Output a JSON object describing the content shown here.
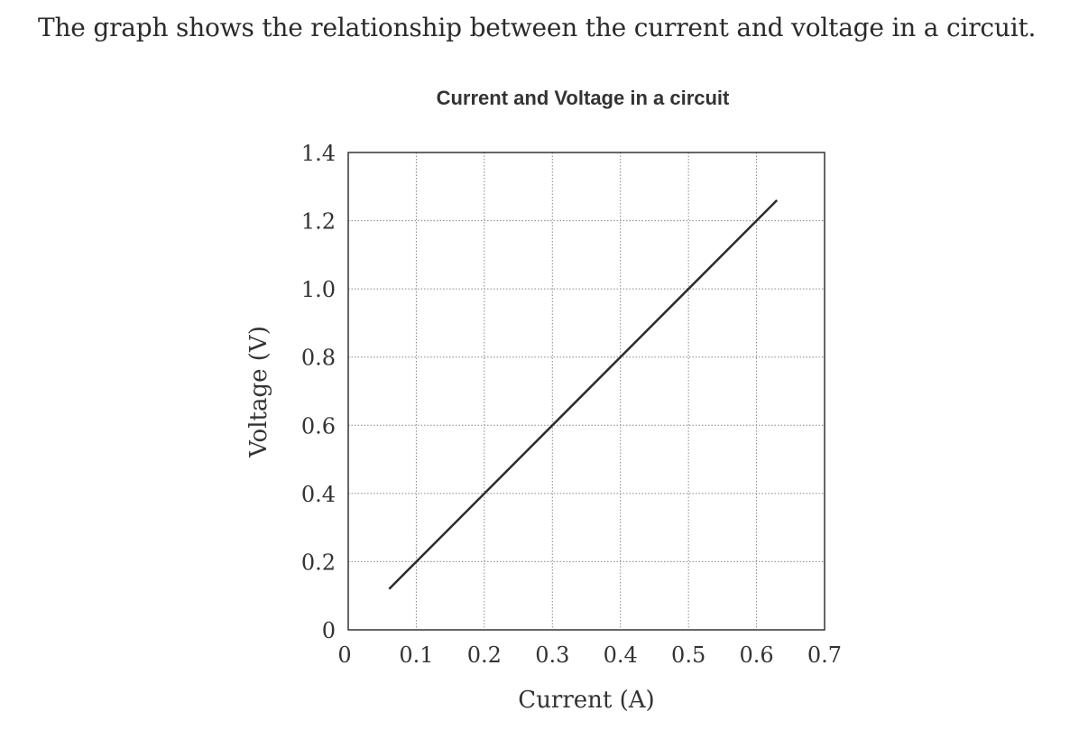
{
  "question_text": "The graph shows the relationship between the current and voltage in a circuit.",
  "chart_data": {
    "type": "line",
    "title": "Current and Voltage in a circuit",
    "xlabel": "Current (A)",
    "ylabel": "Voltage (V)",
    "xlim": [
      0,
      0.7
    ],
    "ylim": [
      0,
      1.4
    ],
    "xticks": [
      "0",
      "0.1",
      "0.2",
      "0.3",
      "0.4",
      "0.5",
      "0.6",
      "0.7"
    ],
    "yticks": [
      "0",
      "0.2",
      "0.4",
      "0.6",
      "0.8",
      "1.0",
      "1.2",
      "1.4"
    ],
    "grid": true,
    "series": [
      {
        "x": [
          0.06,
          0.63
        ],
        "y": [
          0.12,
          1.26
        ]
      }
    ],
    "colors": {
      "line": "#2b2b2b",
      "grid": "#888888",
      "axis": "#333333"
    }
  }
}
